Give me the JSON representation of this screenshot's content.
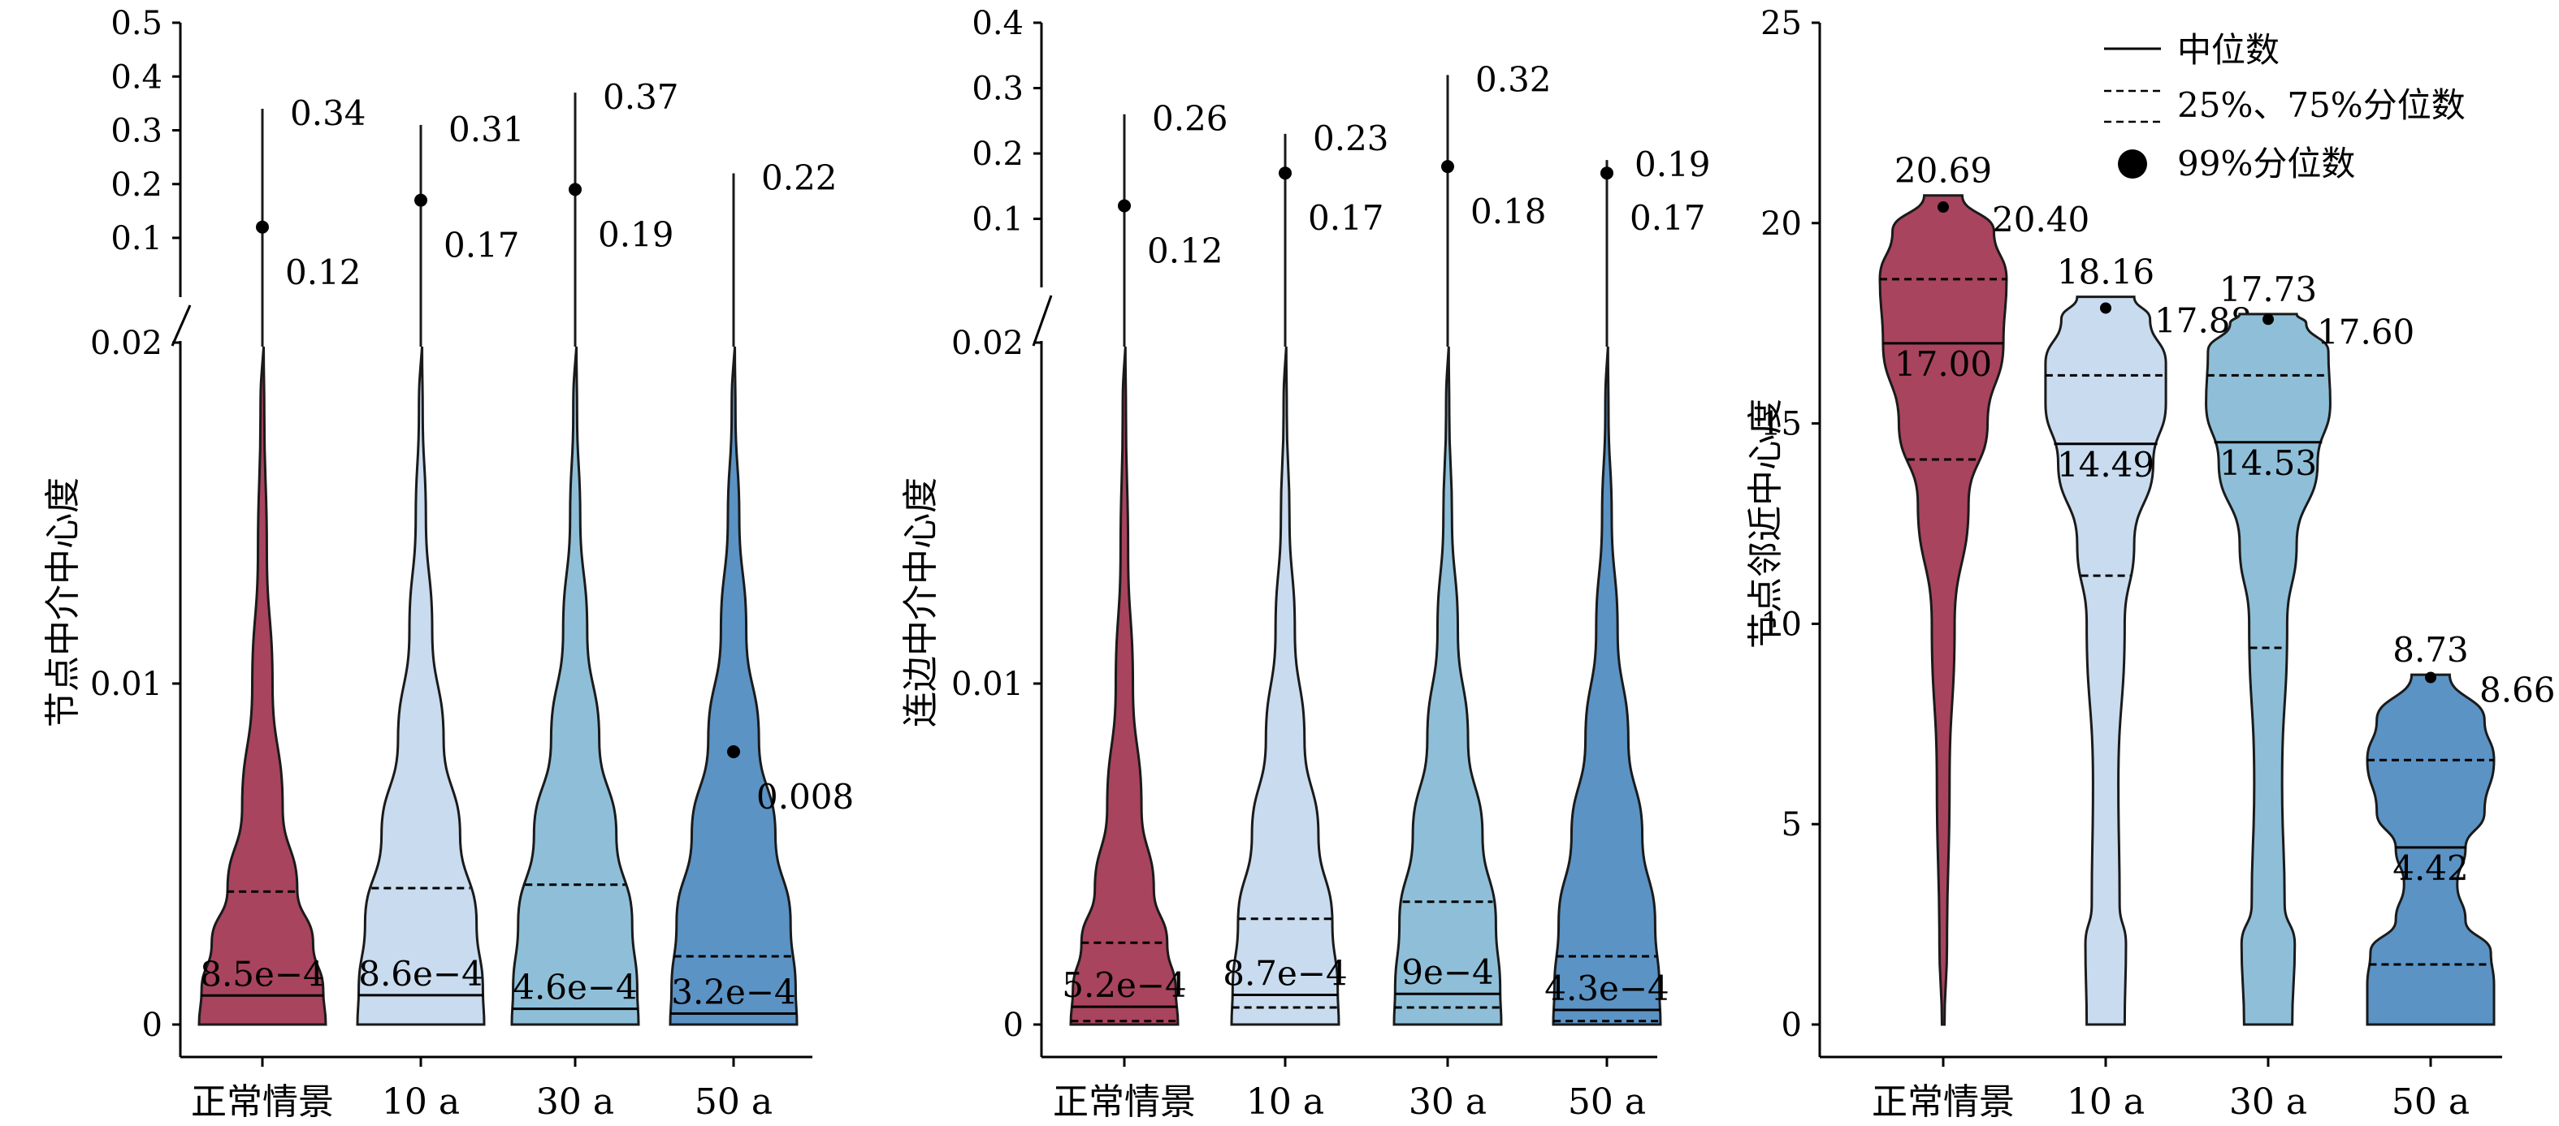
{
  "legend": {
    "median": "中位数",
    "quartiles": "25%、75%分位数",
    "p99": "99%分位数"
  },
  "colors": {
    "normal": "#a8445e",
    "a10": "#c9dbee",
    "a30": "#8fbfd8",
    "a50": "#5b93c4",
    "line": "#1a1a1a"
  },
  "chart_data": [
    {
      "type": "violin",
      "ylabel": "节点中介中心度",
      "categories": [
        "正常情景",
        "10 a",
        "30 a",
        "50 a"
      ],
      "y_axis": {
        "broken": true,
        "lower_range": [
          0,
          0.02
        ],
        "upper_range": [
          0.02,
          0.5
        ],
        "lower_ticks": [
          {
            "v": 0,
            "label": "0"
          },
          {
            "v": 0.01,
            "label": "0.01"
          },
          {
            "v": 0.02,
            "label": "0.02"
          }
        ],
        "upper_ticks": [
          {
            "v": 0.1,
            "label": "0.1"
          },
          {
            "v": 0.2,
            "label": "0.2"
          },
          {
            "v": 0.3,
            "label": "0.3"
          },
          {
            "v": 0.4,
            "label": "0.4"
          },
          {
            "v": 0.5,
            "label": "0.5"
          }
        ]
      },
      "series": [
        {
          "category": "正常情景",
          "median": 0.00085,
          "q1": 0,
          "q3": 0.0039,
          "p99": 0.12,
          "max": 0.34,
          "median_label": "8.5e−4",
          "p99_label": "0.12",
          "max_label": "0.34",
          "color_key": "normal"
        },
        {
          "category": "10 a",
          "median": 0.00086,
          "q1": 0,
          "q3": 0.004,
          "p99": 0.17,
          "max": 0.31,
          "median_label": "8.6e−4",
          "p99_label": "0.17",
          "max_label": "0.31",
          "color_key": "a10"
        },
        {
          "category": "30 a",
          "median": 0.00046,
          "q1": 0,
          "q3": 0.0041,
          "p99": 0.19,
          "max": 0.37,
          "median_label": "4.6e−4",
          "p99_label": "0.19",
          "max_label": "0.37",
          "color_key": "a30"
        },
        {
          "category": "50 a",
          "median": 0.00032,
          "q1": 0,
          "q3": 0.002,
          "p99": 0.008,
          "max": 0.22,
          "median_label": "3.2e−4",
          "p99_label": "0.008",
          "max_label": "0.22",
          "color_key": "a50"
        }
      ]
    },
    {
      "type": "violin",
      "ylabel": "连边中介中心度",
      "categories": [
        "正常情景",
        "10 a",
        "30 a",
        "50 a"
      ],
      "y_axis": {
        "broken": true,
        "lower_range": [
          0,
          0.02
        ],
        "upper_range": [
          0.02,
          0.4
        ],
        "lower_ticks": [
          {
            "v": 0,
            "label": "0"
          },
          {
            "v": 0.01,
            "label": "0.01"
          },
          {
            "v": 0.02,
            "label": "0.02"
          }
        ],
        "upper_ticks": [
          {
            "v": 0.1,
            "label": "0.1"
          },
          {
            "v": 0.2,
            "label": "0.2"
          },
          {
            "v": 0.3,
            "label": "0.3"
          },
          {
            "v": 0.4,
            "label": "0.4"
          }
        ]
      },
      "series": [
        {
          "category": "正常情景",
          "median": 0.00052,
          "q1": 0.0001,
          "q3": 0.0024,
          "p99": 0.12,
          "max": 0.26,
          "median_label": "5.2e−4",
          "p99_label": "0.12",
          "max_label": "0.26",
          "color_key": "normal"
        },
        {
          "category": "10 a",
          "median": 0.00087,
          "q1": 0.0005,
          "q3": 0.0031,
          "p99": 0.17,
          "max": 0.23,
          "median_label": "8.7e−4",
          "p99_label": "0.17",
          "max_label": "0.23",
          "color_key": "a10"
        },
        {
          "category": "30 a",
          "median": 0.0009,
          "q1": 0.0005,
          "q3": 0.0036,
          "p99": 0.18,
          "max": 0.32,
          "median_label": "9e−4",
          "p99_label": "0.18",
          "max_label": "0.32",
          "color_key": "a30"
        },
        {
          "category": "50 a",
          "median": 0.00043,
          "q1": 0.0001,
          "q3": 0.002,
          "p99": 0.17,
          "max": 0.19,
          "median_label": "4.3e−4",
          "p99_label": "0.17",
          "max_label": "0.19",
          "color_key": "a50"
        }
      ]
    },
    {
      "type": "violin",
      "ylabel": "节点邻近中心度",
      "categories": [
        "正常情景",
        "10 a",
        "30 a",
        "50 a"
      ],
      "ylim": [
        0,
        25
      ],
      "yticks": [
        0,
        5,
        10,
        15,
        20,
        25
      ],
      "series": [
        {
          "category": "正常情景",
          "median": 17.0,
          "q1": 14.1,
          "q3": 18.6,
          "p99": 20.4,
          "max": 20.69,
          "median_label": "17.00",
          "p99_label": "20.40",
          "max_label": "20.69",
          "color_key": "normal"
        },
        {
          "category": "10 a",
          "median": 14.49,
          "q1": 11.2,
          "q3": 16.2,
          "p99": 17.88,
          "max": 18.16,
          "median_label": "14.49",
          "p99_label": "17.88",
          "max_label": "18.16",
          "color_key": "a10"
        },
        {
          "category": "30 a",
          "median": 14.53,
          "q1": 9.4,
          "q3": 16.2,
          "p99": 17.6,
          "max": 17.73,
          "median_label": "14.53",
          "p99_label": "17.60",
          "max_label": "17.73",
          "color_key": "a30"
        },
        {
          "category": "50 a",
          "median": 4.42,
          "q1": 1.5,
          "q3": 6.6,
          "p99": 8.66,
          "max": 8.73,
          "median_label": "4.42",
          "p99_label": "8.66",
          "max_label": "8.73",
          "color_key": "a50"
        }
      ],
      "legend_position": "top-right"
    }
  ]
}
